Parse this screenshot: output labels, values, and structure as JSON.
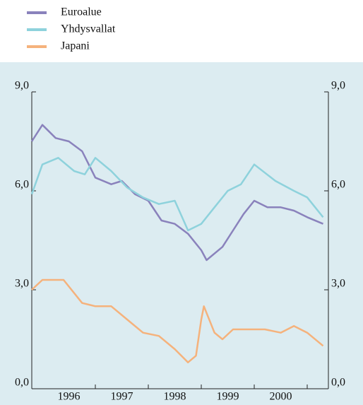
{
  "chart_data": {
    "type": "line",
    "xlim": [
      1995.8,
      2001.4
    ],
    "xticks": [
      {
        "value": 1996.5,
        "label": "1996"
      },
      {
        "value": 1997.5,
        "label": "1997"
      },
      {
        "value": 1998.5,
        "label": "1998"
      },
      {
        "value": 1999.5,
        "label": "1999"
      },
      {
        "value": 2000.5,
        "label": "2000"
      }
    ],
    "xminorticks": [
      1997,
      1998,
      1999,
      2000,
      2001
    ],
    "ylim": [
      0,
      9
    ],
    "yticks": [
      {
        "value": 0,
        "label": "0,0"
      },
      {
        "value": 3,
        "label": "3,0"
      },
      {
        "value": 6,
        "label": "6,0"
      },
      {
        "value": 9,
        "label": "9,0"
      }
    ],
    "series": [
      {
        "name": "Euroalue",
        "color": "#8a82bc",
        "x": [
          1995.8,
          1996.0,
          1996.25,
          1996.5,
          1996.75,
          1997.0,
          1997.3,
          1997.5,
          1997.75,
          1998.0,
          1998.25,
          1998.5,
          1998.75,
          1999.0,
          1999.1,
          1999.4,
          1999.6,
          1999.8,
          2000.0,
          2000.25,
          2000.5,
          2000.75,
          2001.0,
          2001.3
        ],
        "values": [
          7.5,
          8.0,
          7.6,
          7.5,
          7.2,
          6.4,
          6.2,
          6.3,
          5.9,
          5.7,
          5.1,
          5.0,
          4.7,
          4.2,
          3.9,
          4.3,
          4.8,
          5.3,
          5.7,
          5.5,
          5.5,
          5.4,
          5.2,
          5.0
        ]
      },
      {
        "name": "Yhdysvallat",
        "color": "#8ed2dc",
        "x": [
          1995.8,
          1996.0,
          1996.3,
          1996.6,
          1996.8,
          1997.0,
          1997.3,
          1997.6,
          1997.9,
          1998.2,
          1998.5,
          1998.75,
          1999.0,
          1999.25,
          1999.5,
          1999.75,
          2000.0,
          2000.4,
          2000.75,
          2001.0,
          2001.3
        ],
        "values": [
          5.9,
          6.8,
          7.0,
          6.6,
          6.5,
          7.0,
          6.6,
          6.1,
          5.8,
          5.6,
          5.7,
          4.8,
          5.0,
          5.5,
          6.0,
          6.2,
          6.8,
          6.3,
          6.0,
          5.8,
          5.2
        ]
      },
      {
        "name": "Japani",
        "color": "#f5b27c",
        "x": [
          1995.8,
          1996.0,
          1996.4,
          1996.75,
          1997.0,
          1997.3,
          1997.6,
          1997.9,
          1998.2,
          1998.5,
          1998.75,
          1998.9,
          1999.0,
          1999.05,
          1999.25,
          1999.4,
          1999.6,
          1999.9,
          2000.2,
          2000.5,
          2000.75,
          2001.0,
          2001.3
        ],
        "values": [
          3.0,
          3.3,
          3.3,
          2.6,
          2.5,
          2.5,
          2.1,
          1.7,
          1.6,
          1.2,
          0.8,
          1.0,
          2.1,
          2.5,
          1.7,
          1.5,
          1.8,
          1.8,
          1.8,
          1.7,
          1.9,
          1.7,
          1.3
        ]
      }
    ]
  }
}
